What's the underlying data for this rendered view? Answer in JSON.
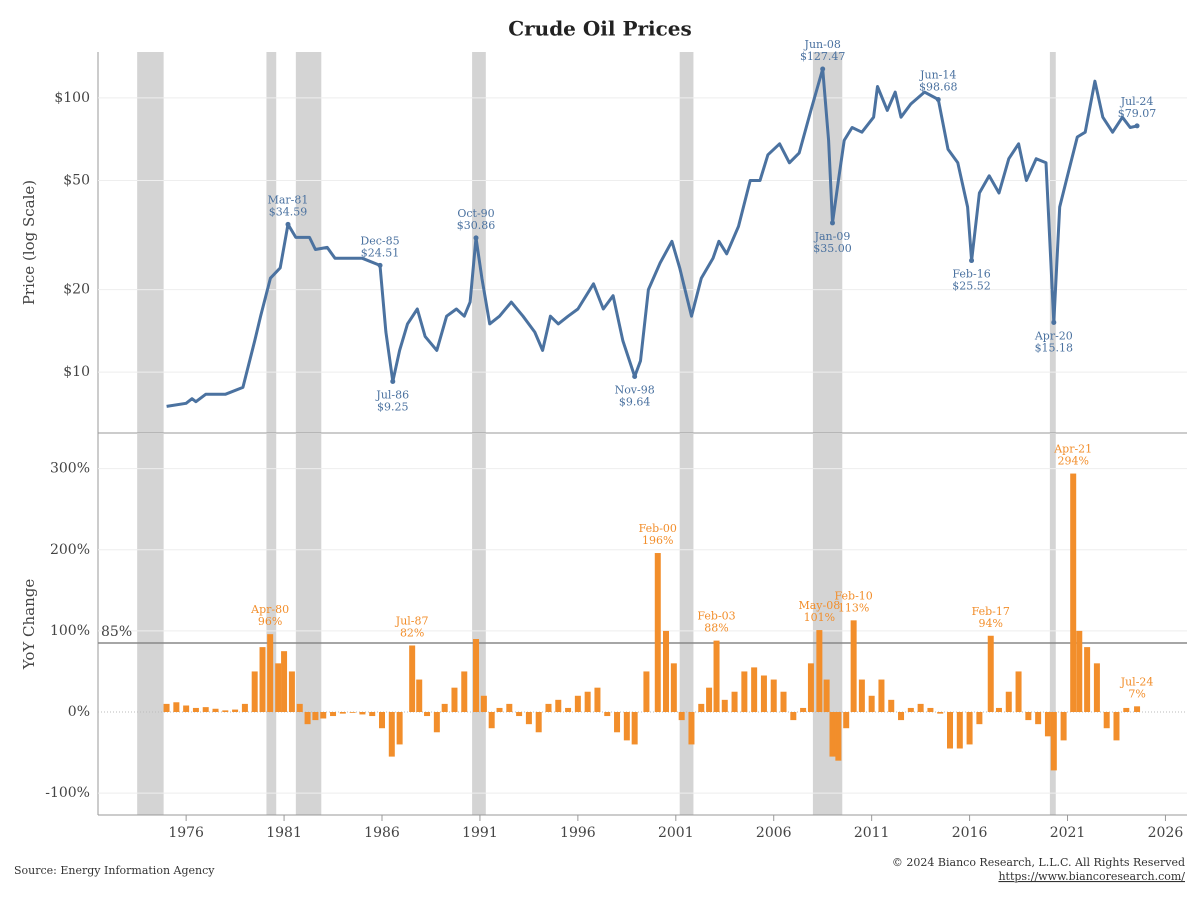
{
  "chart_data": [
    {
      "type": "line",
      "title": "Crude Oil Prices",
      "y_label": "Price (log Scale)",
      "log_y": true,
      "grid": true,
      "color": "#4b72a0",
      "xlim": [
        1971.5,
        2027.1
      ],
      "ylim": [
        6,
        147
      ],
      "yticks": [
        {
          "value": 10,
          "label": "$10"
        },
        {
          "value": 20,
          "label": "$20"
        },
        {
          "value": 50,
          "label": "$50"
        },
        {
          "value": 100,
          "label": "$100"
        }
      ],
      "shaded_periods": [
        [
          1973.5,
          1974.85
        ],
        [
          1980.1,
          1980.6
        ],
        [
          1981.6,
          1982.9
        ],
        [
          1990.6,
          1991.3
        ],
        [
          2001.2,
          2001.9
        ],
        [
          2008.0,
          2009.5
        ],
        [
          2020.1,
          2020.4
        ]
      ],
      "x": [
        1975.0,
        1976,
        1976.3,
        1976.5,
        1977,
        1978,
        1978.9,
        1979.5,
        1979.8,
        1980.3,
        1980.8,
        1981.2,
        1981.6,
        1982.3,
        1982.6,
        1983.2,
        1983.6,
        1985,
        1985.9,
        1986.2,
        1986.55,
        1986.9,
        1987.3,
        1987.8,
        1988.2,
        1988.8,
        1989.3,
        1989.8,
        1990.2,
        1990.5,
        1990.8,
        1991.1,
        1991.5,
        1992,
        1992.6,
        1993.2,
        1993.8,
        1994.2,
        1994.6,
        1995,
        1995.5,
        1996,
        1996.8,
        1997.3,
        1997.8,
        1998.3,
        1998.9,
        1999.2,
        1999.6,
        2000.2,
        2000.8,
        2001.2,
        2001.8,
        2002.3,
        2002.9,
        2003.2,
        2003.6,
        2004.2,
        2004.8,
        2005.3,
        2005.7,
        2006.3,
        2006.8,
        2007.3,
        2007.9,
        2008.5,
        2008.8,
        2009.0,
        2009.3,
        2009.6,
        2010,
        2010.5,
        2011.1,
        2011.3,
        2011.8,
        2012.2,
        2012.5,
        2013,
        2013.7,
        2014.4,
        2014.9,
        2015.4,
        2015.9,
        2016.1,
        2016.5,
        2017,
        2017.5,
        2018,
        2018.5,
        2018.9,
        2019.4,
        2019.9,
        2020.3,
        2020.6,
        2021,
        2021.5,
        2021.9,
        2022.4,
        2022.8,
        2023.3,
        2023.8,
        2024.2,
        2024.55
      ],
      "values": [
        7.5,
        7.7,
        8.0,
        7.8,
        8.3,
        8.3,
        8.8,
        13,
        16,
        22,
        24,
        34.59,
        31,
        31,
        28,
        28.5,
        26,
        26,
        24.51,
        14,
        9.25,
        12,
        15,
        17,
        13.5,
        12,
        16,
        17,
        16,
        18,
        30.86,
        22,
        15,
        16,
        18,
        16,
        14,
        12,
        16,
        15,
        16,
        17,
        21,
        17,
        19,
        13,
        9.64,
        11,
        20,
        25,
        30,
        24,
        16,
        22,
        26,
        30,
        27,
        34,
        50,
        50,
        62,
        68,
        58,
        63,
        90,
        127.47,
        70,
        35,
        50,
        70,
        78,
        75,
        85,
        110,
        90,
        105,
        85,
        95,
        105,
        98.68,
        65,
        58,
        40,
        25.52,
        45,
        52,
        45,
        60,
        68,
        50,
        60,
        58,
        15.18,
        40,
        52,
        72,
        75,
        115,
        85,
        75,
        85,
        78,
        79.07
      ],
      "date_labels": [
        null,
        null,
        null,
        null,
        null,
        null,
        null,
        null,
        null,
        null,
        null,
        "Mar-81",
        null,
        null,
        null,
        null,
        null,
        null,
        "Dec-85",
        null,
        "Jul-86",
        null,
        null,
        null,
        null,
        null,
        null,
        null,
        null,
        null,
        "Oct-90",
        null,
        null,
        null,
        null,
        null,
        null,
        null,
        null,
        null,
        null,
        null,
        null,
        null,
        null,
        null,
        "Nov-98",
        null,
        null,
        null,
        null,
        null,
        null,
        null,
        null,
        null,
        null,
        null,
        null,
        null,
        null,
        null,
        null,
        null,
        null,
        "Jun-08",
        null,
        "Jan-09",
        null,
        null,
        null,
        null,
        null,
        null,
        null,
        null,
        null,
        null,
        null,
        "Jun-14",
        null,
        null,
        null,
        "Feb-16",
        null,
        null,
        null,
        null,
        null,
        null,
        null,
        null,
        "Apr-20",
        null,
        null,
        null,
        null,
        null,
        null,
        null,
        null,
        null,
        "Jul-24"
      ],
      "value_labels": [
        null,
        null,
        null,
        null,
        null,
        null,
        null,
        null,
        null,
        null,
        null,
        "$34.59",
        null,
        null,
        null,
        null,
        null,
        null,
        "$24.51",
        null,
        "$9.25",
        null,
        null,
        null,
        null,
        null,
        null,
        null,
        null,
        null,
        "$30.86",
        null,
        null,
        null,
        null,
        null,
        null,
        null,
        null,
        null,
        null,
        null,
        null,
        null,
        null,
        null,
        "$9.64",
        null,
        null,
        null,
        null,
        null,
        null,
        null,
        null,
        null,
        null,
        null,
        null,
        null,
        null,
        null,
        null,
        null,
        null,
        "$127.47",
        null,
        "$35.00",
        null,
        null,
        null,
        null,
        null,
        null,
        null,
        null,
        null,
        null,
        null,
        "$98.68",
        null,
        null,
        null,
        "$25.52",
        null,
        null,
        null,
        null,
        null,
        null,
        null,
        null,
        "$15.18",
        null,
        null,
        null,
        null,
        null,
        null,
        null,
        null,
        null,
        "$79.07"
      ]
    },
    {
      "type": "bar",
      "y_label": "YoY Change",
      "grid": true,
      "color": "#f28e2b",
      "xlim": [
        1971.5,
        2027.1
      ],
      "ylim": [
        -127,
        344
      ],
      "xticks": [
        1976,
        1981,
        1986,
        1991,
        1996,
        2001,
        2006,
        2011,
        2016,
        2021,
        2026
      ],
      "yticks": [
        {
          "value": -100,
          "label": "-100%"
        },
        {
          "value": 0,
          "label": "0%"
        },
        {
          "value": 100,
          "label": "100%"
        },
        {
          "value": 200,
          "label": "200%"
        },
        {
          "value": 300,
          "label": "300%"
        }
      ],
      "reference_line": {
        "value": 85,
        "label": "85%"
      },
      "x": [
        1975.0,
        1975.5,
        1976,
        1976.5,
        1977,
        1977.5,
        1978,
        1978.5,
        1979,
        1979.5,
        1979.9,
        1980.29,
        1980.7,
        1981,
        1981.4,
        1981.8,
        1982.2,
        1982.6,
        1983,
        1983.5,
        1984,
        1984.5,
        1985,
        1985.5,
        1986,
        1986.5,
        1986.9,
        1987.54,
        1987.9,
        1988.3,
        1988.8,
        1989.2,
        1989.7,
        1990.2,
        1990.8,
        1991.2,
        1991.6,
        1992,
        1992.5,
        1993,
        1993.5,
        1994,
        1994.5,
        1995,
        1995.5,
        1996,
        1996.5,
        1997,
        1997.5,
        1998,
        1998.5,
        1998.9,
        1999.5,
        2000.08,
        2000.5,
        2000.9,
        2001.3,
        2001.8,
        2002.3,
        2002.7,
        2003.08,
        2003.5,
        2004,
        2004.5,
        2005,
        2005.5,
        2006,
        2006.5,
        2007,
        2007.5,
        2007.9,
        2008.33,
        2008.7,
        2009.0,
        2009.3,
        2009.7,
        2010.08,
        2010.5,
        2011,
        2011.5,
        2012,
        2012.5,
        2013,
        2013.5,
        2014,
        2014.5,
        2015,
        2015.5,
        2016,
        2016.5,
        2017.08,
        2017.5,
        2018,
        2018.5,
        2019,
        2019.5,
        2020,
        2020.3,
        2020.8,
        2021.29,
        2021.6,
        2022,
        2022.5,
        2023,
        2023.5,
        2024,
        2024.55
      ],
      "values": [
        10,
        12,
        8,
        5,
        6,
        4,
        2,
        3,
        10,
        50,
        80,
        96,
        60,
        75,
        50,
        10,
        -15,
        -10,
        -8,
        -5,
        -2,
        -1,
        -3,
        -5,
        -20,
        -55,
        -40,
        82,
        40,
        -5,
        -25,
        10,
        30,
        50,
        90,
        20,
        -20,
        5,
        10,
        -5,
        -15,
        -25,
        10,
        15,
        5,
        20,
        25,
        30,
        -5,
        -25,
        -35,
        -40,
        50,
        196,
        100,
        60,
        -10,
        -40,
        10,
        30,
        88,
        15,
        25,
        50,
        55,
        45,
        40,
        25,
        -10,
        5,
        60,
        101,
        40,
        -55,
        -60,
        -20,
        113,
        40,
        20,
        40,
        15,
        -10,
        5,
        10,
        5,
        -2,
        -45,
        -45,
        -40,
        -15,
        94,
        5,
        25,
        50,
        -10,
        -15,
        -30,
        -72,
        -35,
        294,
        100,
        80,
        60,
        -20,
        -35,
        5,
        7
      ],
      "date_labels": [
        null,
        null,
        null,
        null,
        null,
        null,
        null,
        null,
        null,
        null,
        null,
        "Apr-80",
        null,
        null,
        null,
        null,
        null,
        null,
        null,
        null,
        null,
        null,
        null,
        null,
        null,
        null,
        null,
        "Jul-87",
        null,
        null,
        null,
        null,
        null,
        null,
        null,
        null,
        null,
        null,
        null,
        null,
        null,
        null,
        null,
        null,
        null,
        null,
        null,
        null,
        null,
        null,
        null,
        null,
        null,
        "Feb-00",
        null,
        null,
        null,
        null,
        null,
        null,
        "Feb-03",
        null,
        null,
        null,
        null,
        null,
        null,
        null,
        null,
        null,
        null,
        "May-08",
        null,
        null,
        null,
        null,
        "Feb-10",
        null,
        null,
        null,
        null,
        null,
        null,
        null,
        null,
        null,
        null,
        null,
        null,
        null,
        "Feb-17",
        null,
        null,
        null,
        null,
        null,
        null,
        null,
        null,
        "Apr-21",
        null,
        null,
        null,
        null,
        null,
        null,
        "Jul-24"
      ],
      "value_labels": [
        null,
        null,
        null,
        null,
        null,
        null,
        null,
        null,
        null,
        null,
        null,
        "96%",
        null,
        null,
        null,
        null,
        null,
        null,
        null,
        null,
        null,
        null,
        null,
        null,
        null,
        null,
        null,
        "82%",
        null,
        null,
        null,
        null,
        null,
        null,
        null,
        null,
        null,
        null,
        null,
        null,
        null,
        null,
        null,
        null,
        null,
        null,
        null,
        null,
        null,
        null,
        null,
        null,
        null,
        "196%",
        null,
        null,
        null,
        null,
        null,
        null,
        "88%",
        null,
        null,
        null,
        null,
        null,
        null,
        null,
        null,
        null,
        null,
        "101%",
        null,
        null,
        null,
        null,
        "113%",
        null,
        null,
        null,
        null,
        null,
        null,
        null,
        null,
        null,
        null,
        null,
        null,
        null,
        "94%",
        null,
        null,
        null,
        null,
        null,
        null,
        null,
        null,
        "294%",
        null,
        null,
        null,
        null,
        null,
        null,
        "7%"
      ]
    }
  ],
  "footer": {
    "source": "Source: Energy Information Agency",
    "copyright": "© 2024 Bianco Research, L.L.C. All Rights Reserved",
    "url": "https://www.biancoresearch.com/"
  }
}
